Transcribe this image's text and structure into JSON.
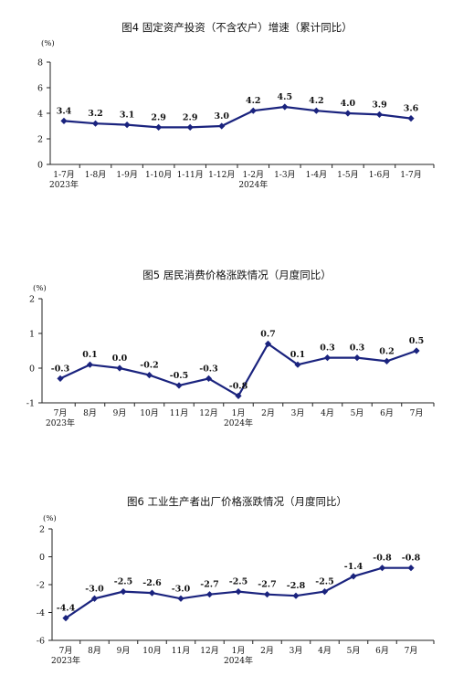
{
  "chart_data": [
    {
      "type": "line",
      "title": "图4  固定资产投资（不含农户）增速（累计同比）",
      "ylabel": "(%)",
      "ylim": [
        0,
        8
      ],
      "yticks": [
        "0",
        "2",
        "4",
        "6",
        "8"
      ],
      "categories": [
        "1-7月",
        "1-8月",
        "1-9月",
        "1-10月",
        "1-11月",
        "1-12月",
        "1-2月",
        "1-3月",
        "1-4月",
        "1-5月",
        "1-6月",
        "1-7月"
      ],
      "year_labels": [
        {
          "index": 0,
          "text": "2023年"
        },
        {
          "index": 6,
          "text": "2024年"
        }
      ],
      "values": [
        3.4,
        3.2,
        3.1,
        2.9,
        2.9,
        3.0,
        4.2,
        4.5,
        4.2,
        4.0,
        3.9,
        3.6
      ],
      "labels": [
        "3.4",
        "3.2",
        "3.1",
        "2.9",
        "2.9",
        "3.0",
        "4.2",
        "4.5",
        "4.2",
        "4.0",
        "3.9",
        "3.6"
      ],
      "grid": false,
      "color": "#1a237e"
    },
    {
      "type": "line",
      "title": "图5  居民消费价格涨跌情况（月度同比）",
      "ylabel": "(%)",
      "ylim": [
        -1,
        2
      ],
      "yticks": [
        "-1",
        "0",
        "1",
        "2"
      ],
      "categories": [
        "7月",
        "8月",
        "9月",
        "10月",
        "11月",
        "12月",
        "1月",
        "2月",
        "3月",
        "4月",
        "5月",
        "6月",
        "7月"
      ],
      "year_labels": [
        {
          "index": 0,
          "text": "2023年"
        },
        {
          "index": 6,
          "text": "2024年"
        }
      ],
      "values": [
        -0.3,
        0.1,
        0.0,
        -0.2,
        -0.5,
        -0.3,
        -0.8,
        0.7,
        0.1,
        0.3,
        0.3,
        0.2,
        0.5
      ],
      "labels": [
        "-0.3",
        "0.1",
        "0.0",
        "-0.2",
        "-0.5",
        "-0.3",
        "-0.8",
        "0.7",
        "0.1",
        "0.3",
        "0.3",
        "0.2",
        "0.5"
      ],
      "grid": false,
      "color": "#1a237e"
    },
    {
      "type": "line",
      "title": "图6  工业生产者出厂价格涨跌情况（月度同比）",
      "ylabel": "(%)",
      "ylim": [
        -6,
        2
      ],
      "yticks": [
        "-6",
        "-4",
        "-2",
        "0",
        "2"
      ],
      "categories": [
        "7月",
        "8月",
        "9月",
        "10月",
        "11月",
        "12月",
        "1月",
        "2月",
        "3月",
        "4月",
        "5月",
        "6月",
        "7月"
      ],
      "year_labels": [
        {
          "index": 0,
          "text": "2023年"
        },
        {
          "index": 6,
          "text": "2024年"
        }
      ],
      "values": [
        -4.4,
        -3.0,
        -2.5,
        -2.6,
        -3.0,
        -2.7,
        -2.5,
        -2.7,
        -2.8,
        -2.5,
        -1.4,
        -0.8,
        -0.8
      ],
      "labels": [
        "-4.4",
        "-3.0",
        "-2.5",
        "-2.6",
        "-3.0",
        "-2.7",
        "-2.5",
        "-2.7",
        "-2.8",
        "-2.5",
        "-1.4",
        "-0.8",
        "-0.8"
      ],
      "grid": false,
      "color": "#1a237e"
    }
  ]
}
